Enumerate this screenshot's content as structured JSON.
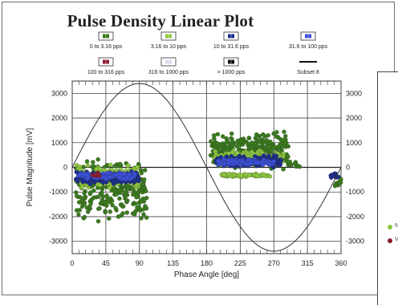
{
  "chart_data": {
    "type": "scatter",
    "title": "Pulse Density Linear Plot",
    "xlabel": "Phase Angle [deg]",
    "ylabel": "Pulse Magnitude [mV]",
    "xlim": [
      0,
      360
    ],
    "ylim": [
      -3500,
      3500
    ],
    "x_ticks": [
      0,
      45,
      90,
      135,
      180,
      225,
      270,
      315,
      360
    ],
    "y_ticks": [
      3000,
      2000,
      1000,
      0,
      -1000,
      -2000,
      -3000
    ],
    "y_tick_labels_left": [
      "3000",
      "2000",
      "1000",
      "0",
      "-1000",
      "-2000",
      "-3000"
    ],
    "y_tick_labels_right": [
      "3000",
      "2000",
      "1000",
      "0",
      "-1000",
      "-2000",
      "-3000"
    ],
    "grid": true,
    "legend_placement": "top",
    "legend": [
      {
        "label": "0 to 3.16 pps",
        "color": "#3a7a1e"
      },
      {
        "label": "3.16 to 10 pps",
        "color": "#8ec63f"
      },
      {
        "label": "10 to 31.6 pps",
        "color": "#1c2e8c"
      },
      {
        "label": "31.6 to 100 pps",
        "color": "#3b4fd8"
      },
      {
        "label": "100 to 316 pps",
        "color": "#8b1a2e"
      },
      {
        "label": "316 to 1000 pps",
        "color": "#e4d7ec"
      },
      {
        "label": "> 1000 pps",
        "color": "#111111"
      },
      {
        "label": "Subset 8",
        "color": "#111111"
      }
    ],
    "sine_reference": {
      "name": "Subset 8",
      "amplitude": 3400,
      "phase_deg": 0,
      "period_deg": 360
    },
    "clusters": [
      {
        "series": "0 to 3.16 pps",
        "x_range": [
          5,
          100
        ],
        "y_range": [
          -2200,
          350
        ],
        "density": 260
      },
      {
        "series": "3.16 to 10 pps",
        "x_range": [
          5,
          90
        ],
        "y_range": [
          -900,
          150
        ],
        "density": 140
      },
      {
        "series": "10 to 31.6 pps",
        "x_range": [
          5,
          90
        ],
        "y_range": [
          -700,
          -150
        ],
        "density": 150
      },
      {
        "series": "31.6 to 100 pps",
        "x_range": [
          8,
          85
        ],
        "y_range": [
          -500,
          -200
        ],
        "density": 110
      },
      {
        "series": "100 to 316 pps",
        "x_range": [
          25,
          40
        ],
        "y_range": [
          -350,
          -200
        ],
        "density": 6
      },
      {
        "series": "0 to 3.16 pps",
        "x_range": [
          185,
          290
        ],
        "y_range": [
          -100,
          1500
        ],
        "density": 280
      },
      {
        "series": "3.16 to 10 pps",
        "x_range": [
          190,
          285
        ],
        "y_range": [
          150,
          700
        ],
        "density": 140
      },
      {
        "series": "10 to 31.6 pps",
        "x_range": [
          190,
          280
        ],
        "y_range": [
          0,
          500
        ],
        "density": 150
      },
      {
        "series": "31.6 to 100 pps",
        "x_range": [
          195,
          270
        ],
        "y_range": [
          50,
          350
        ],
        "density": 110
      },
      {
        "series": "3.16 to 10 pps",
        "x_range": [
          200,
          265
        ],
        "y_range": [
          -400,
          -250
        ],
        "density": 60
      },
      {
        "series": "0 to 3.16 pps",
        "x_range": [
          290,
          305
        ],
        "y_range": [
          -50,
          250
        ],
        "density": 10
      },
      {
        "series": "10 to 31.6 pps",
        "x_range": [
          345,
          360
        ],
        "y_range": [
          -500,
          -200
        ],
        "density": 10
      },
      {
        "series": "0 to 3.16 pps",
        "x_range": [
          348,
          360
        ],
        "y_range": [
          -900,
          -400
        ],
        "density": 8
      }
    ]
  },
  "side_panel": {
    "items": [
      {
        "label": "N",
        "color": "#8ec63f"
      },
      {
        "label": "V",
        "color": "#8b1a2e"
      }
    ]
  }
}
